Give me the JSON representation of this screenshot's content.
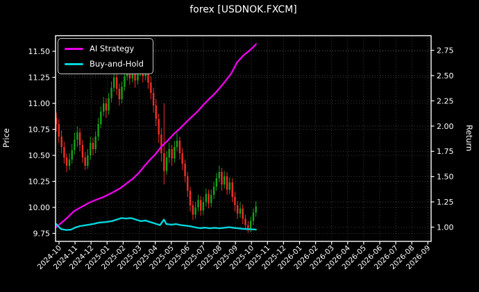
{
  "chart_data": {
    "type": "candlestick+line",
    "title": "forex [USDNOK.FXCM]",
    "ylabel_left": "Price",
    "ylabel_right": "Return",
    "grid": true,
    "legend": {
      "position": "upper left",
      "entries": [
        {
          "label": "AI Strategy",
          "color": "#ea00ea"
        },
        {
          "label": "Buy-and-Hold",
          "color": "#00d6dc"
        }
      ]
    },
    "colors": {
      "background": "#000000",
      "text": "#ffffff",
      "spine": "#ffffff",
      "grid": "#ffffff",
      "up_candle": "#17a317",
      "down_candle": "#f03028",
      "ai_line": "#ea00ea",
      "buy_hold_line": "#00d6dc"
    },
    "x_unit": "months since 2024-10",
    "x_tick_labels": [
      "2024-10",
      "2024-11",
      "2024-12",
      "2025-01",
      "2025-02",
      "2025-03",
      "2025-04",
      "2025-05",
      "2025-06",
      "2025-07",
      "2025-08",
      "2025-09",
      "2025-10",
      "2025-11",
      "2025-12",
      "2026-01",
      "2026-02",
      "2026-03",
      "2026-04",
      "2026-05",
      "2026-06",
      "2026-07",
      "2026-08",
      "2026-09"
    ],
    "y_left_ticks": [
      "9.75",
      "10.00",
      "10.25",
      "10.50",
      "10.75",
      "11.00",
      "11.25",
      "11.50"
    ],
    "y_left_values": [
      9.75,
      10.0,
      10.25,
      10.5,
      10.75,
      11.0,
      11.25,
      11.5
    ],
    "y_right_ticks": [
      "1.00",
      "1.25",
      "1.50",
      "1.75",
      "2.00",
      "2.25",
      "2.50",
      "2.75"
    ],
    "y_right_values": [
      1.0,
      1.25,
      1.5,
      1.75,
      2.0,
      2.25,
      2.5,
      2.75
    ],
    "ylim_left": [
      9.69,
      11.65
    ],
    "ylim_right": [
      0.87,
      2.9
    ],
    "candles": [
      [
        -0.17,
        10.86,
        10.91,
        10.73,
        10.8
      ],
      [
        -0.01,
        10.8,
        10.85,
        10.62,
        10.68
      ],
      [
        0.16,
        10.68,
        10.74,
        10.52,
        10.58
      ],
      [
        0.32,
        10.58,
        10.63,
        10.42,
        10.48
      ],
      [
        0.48,
        10.48,
        10.52,
        10.34,
        10.4
      ],
      [
        0.65,
        10.4,
        10.52,
        10.36,
        10.46
      ],
      [
        0.81,
        10.46,
        10.61,
        10.42,
        10.55
      ],
      [
        0.97,
        10.55,
        10.72,
        10.51,
        10.65
      ],
      [
        1.14,
        10.65,
        10.78,
        10.58,
        10.72
      ],
      [
        1.3,
        10.72,
        10.76,
        10.54,
        10.6
      ],
      [
        1.47,
        10.6,
        10.65,
        10.43,
        10.48
      ],
      [
        1.63,
        10.48,
        10.53,
        10.36,
        10.4
      ],
      [
        1.79,
        10.4,
        10.56,
        10.37,
        10.5
      ],
      [
        1.96,
        10.5,
        10.68,
        10.46,
        10.62
      ],
      [
        2.12,
        10.62,
        10.67,
        10.5,
        10.56
      ],
      [
        2.28,
        10.56,
        10.73,
        10.52,
        10.68
      ],
      [
        2.45,
        10.68,
        10.86,
        10.64,
        10.8
      ],
      [
        2.61,
        10.8,
        10.97,
        10.76,
        10.92
      ],
      [
        2.78,
        10.92,
        11.06,
        10.88,
        11.0
      ],
      [
        2.94,
        11.0,
        11.05,
        10.86,
        10.93
      ],
      [
        3.1,
        10.93,
        11.1,
        10.89,
        11.05
      ],
      [
        3.27,
        11.05,
        11.21,
        11.01,
        11.15
      ],
      [
        3.43,
        11.15,
        11.35,
        11.11,
        11.25
      ],
      [
        3.6,
        11.25,
        11.29,
        11.08,
        11.14
      ],
      [
        3.76,
        11.14,
        11.19,
        10.98,
        11.04
      ],
      [
        3.92,
        11.04,
        11.21,
        11.0,
        11.16
      ],
      [
        4.09,
        11.16,
        11.31,
        11.12,
        11.26
      ],
      [
        4.25,
        11.26,
        11.42,
        11.22,
        11.33
      ],
      [
        4.41,
        11.33,
        11.38,
        11.18,
        11.24
      ],
      [
        4.58,
        11.24,
        11.36,
        11.2,
        11.31
      ],
      [
        4.74,
        11.31,
        11.35,
        11.15,
        11.22
      ],
      [
        4.91,
        11.22,
        11.35,
        11.18,
        11.3
      ],
      [
        5.07,
        11.3,
        11.45,
        11.26,
        11.38
      ],
      [
        5.23,
        11.38,
        11.42,
        11.2,
        11.26
      ],
      [
        5.4,
        11.26,
        11.39,
        11.22,
        11.33
      ],
      [
        5.56,
        11.33,
        11.37,
        11.14,
        11.2
      ],
      [
        5.73,
        11.2,
        11.26,
        11.04,
        11.1
      ],
      [
        5.89,
        11.1,
        11.15,
        10.91,
        10.98
      ],
      [
        6.05,
        10.98,
        11.04,
        10.78,
        10.85
      ],
      [
        6.22,
        10.85,
        10.9,
        10.62,
        10.7
      ],
      [
        6.38,
        10.7,
        10.76,
        10.44,
        10.52
      ],
      [
        6.55,
        10.52,
        11.0,
        10.22,
        10.35
      ],
      [
        6.71,
        10.35,
        10.54,
        10.31,
        10.48
      ],
      [
        6.87,
        10.48,
        10.62,
        10.43,
        10.56
      ],
      [
        7.04,
        10.56,
        10.6,
        10.4,
        10.47
      ],
      [
        7.2,
        10.47,
        10.64,
        10.43,
        10.58
      ],
      [
        7.36,
        10.58,
        10.72,
        10.54,
        10.64
      ],
      [
        7.53,
        10.64,
        10.68,
        10.46,
        10.52
      ],
      [
        7.69,
        10.52,
        10.57,
        10.36,
        10.42
      ],
      [
        7.86,
        10.42,
        10.46,
        10.24,
        10.3
      ],
      [
        8.02,
        10.3,
        10.34,
        10.1,
        10.16
      ],
      [
        8.18,
        10.16,
        10.2,
        9.96,
        10.02
      ],
      [
        8.35,
        10.02,
        10.06,
        9.88,
        9.93
      ],
      [
        8.51,
        9.93,
        10.05,
        9.89,
        10.0
      ],
      [
        8.68,
        10.0,
        10.12,
        9.96,
        10.07
      ],
      [
        8.84,
        10.07,
        10.11,
        9.92,
        9.97
      ],
      [
        9.0,
        9.97,
        10.1,
        9.93,
        10.05
      ],
      [
        9.17,
        10.05,
        10.18,
        10.01,
        10.13
      ],
      [
        9.33,
        10.13,
        10.17,
        9.99,
        10.04
      ],
      [
        9.49,
        10.04,
        10.17,
        10.0,
        10.12
      ],
      [
        9.66,
        10.12,
        10.25,
        10.08,
        10.2
      ],
      [
        9.82,
        10.2,
        10.33,
        10.16,
        10.28
      ],
      [
        9.99,
        10.28,
        10.4,
        10.24,
        10.34
      ],
      [
        10.15,
        10.34,
        10.38,
        10.16,
        10.22
      ],
      [
        10.31,
        10.22,
        10.35,
        10.18,
        10.3
      ],
      [
        10.48,
        10.3,
        10.34,
        10.12,
        10.17
      ],
      [
        10.64,
        10.17,
        10.29,
        10.13,
        10.24
      ],
      [
        10.81,
        10.24,
        10.28,
        10.05,
        10.1
      ],
      [
        10.97,
        10.1,
        10.15,
        9.96,
        10.02
      ],
      [
        11.13,
        10.02,
        10.06,
        9.89,
        9.94
      ],
      [
        11.3,
        9.94,
        10.05,
        9.9,
        9.99
      ],
      [
        11.46,
        9.99,
        10.03,
        9.84,
        9.89
      ],
      [
        11.62,
        9.89,
        9.93,
        9.79,
        9.83
      ],
      [
        11.79,
        9.83,
        9.87,
        9.755,
        9.79
      ],
      [
        11.95,
        9.79,
        9.91,
        9.76,
        9.87
      ],
      [
        12.12,
        9.87,
        9.99,
        9.83,
        9.95
      ],
      [
        12.28,
        9.95,
        10.06,
        9.91,
        10.01
      ]
    ],
    "series": [
      {
        "name": "AI Strategy",
        "axis": "right",
        "color": "#ea00ea",
        "points": [
          [
            -0.17,
            1.0
          ],
          [
            0.2,
            1.05
          ],
          [
            0.5,
            1.09
          ],
          [
            0.95,
            1.16
          ],
          [
            1.4,
            1.2
          ],
          [
            1.86,
            1.24
          ],
          [
            2.3,
            1.27
          ],
          [
            2.8,
            1.3
          ],
          [
            3.3,
            1.34
          ],
          [
            3.77,
            1.38
          ],
          [
            4.2,
            1.43
          ],
          [
            4.6,
            1.48
          ],
          [
            5.0,
            1.54
          ],
          [
            5.3,
            1.6
          ],
          [
            5.63,
            1.66
          ],
          [
            6.0,
            1.72
          ],
          [
            6.4,
            1.8
          ],
          [
            6.8,
            1.86
          ],
          [
            7.14,
            1.92
          ],
          [
            7.5,
            1.97
          ],
          [
            7.88,
            2.03
          ],
          [
            8.2,
            2.08
          ],
          [
            8.61,
            2.14
          ],
          [
            9.0,
            2.21
          ],
          [
            9.31,
            2.26
          ],
          [
            9.7,
            2.32
          ],
          [
            10.04,
            2.38
          ],
          [
            10.4,
            2.45
          ],
          [
            10.74,
            2.52
          ],
          [
            11.1,
            2.63
          ],
          [
            11.5,
            2.7
          ],
          [
            11.9,
            2.75
          ],
          [
            12.1,
            2.78
          ],
          [
            12.28,
            2.81
          ]
        ]
      },
      {
        "name": "Buy-and-Hold",
        "axis": "right",
        "color": "#00d6dc",
        "points": [
          [
            -0.17,
            1.03
          ],
          [
            0.0,
            1.0
          ],
          [
            0.15,
            0.98
          ],
          [
            0.45,
            0.972
          ],
          [
            0.75,
            0.975
          ],
          [
            1.0,
            0.995
          ],
          [
            1.3,
            1.01
          ],
          [
            1.7,
            1.02
          ],
          [
            2.1,
            1.03
          ],
          [
            2.5,
            1.045
          ],
          [
            2.9,
            1.05
          ],
          [
            3.3,
            1.06
          ],
          [
            3.6,
            1.075
          ],
          [
            3.9,
            1.09
          ],
          [
            4.2,
            1.085
          ],
          [
            4.5,
            1.09
          ],
          [
            4.8,
            1.075
          ],
          [
            5.1,
            1.06
          ],
          [
            5.4,
            1.065
          ],
          [
            5.7,
            1.05
          ],
          [
            6.0,
            1.035
          ],
          [
            6.3,
            1.02
          ],
          [
            6.54,
            1.075
          ],
          [
            6.7,
            1.03
          ],
          [
            7.0,
            1.025
          ],
          [
            7.3,
            1.03
          ],
          [
            7.6,
            1.02
          ],
          [
            7.9,
            1.015
          ],
          [
            8.2,
            1.008
          ],
          [
            8.5,
            0.998
          ],
          [
            8.8,
            0.99
          ],
          [
            9.1,
            0.995
          ],
          [
            9.4,
            0.988
          ],
          [
            9.7,
            0.994
          ],
          [
            10.0,
            0.988
          ],
          [
            10.3,
            0.994
          ],
          [
            10.6,
            0.999
          ],
          [
            10.9,
            0.993
          ],
          [
            11.2,
            0.988
          ],
          [
            11.5,
            0.983
          ],
          [
            11.8,
            0.98
          ],
          [
            12.1,
            0.978
          ],
          [
            12.28,
            0.977
          ]
        ]
      }
    ]
  }
}
